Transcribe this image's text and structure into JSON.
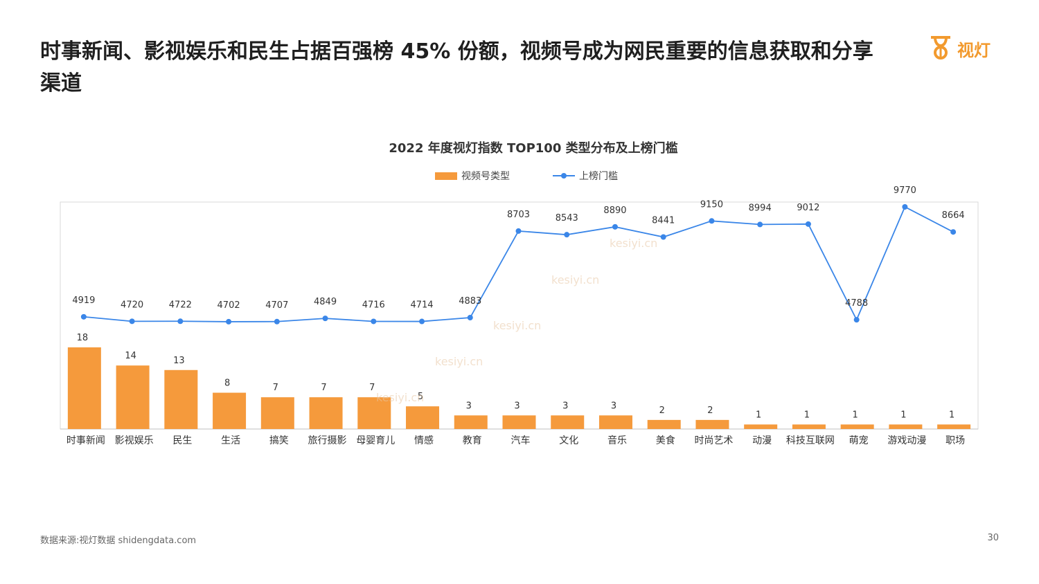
{
  "headline": "时事新闻、影视娱乐和民生占据百强榜 45% 份额，视频号成为网民重要的信息获取和分享渠道",
  "logo": {
    "name": "视灯",
    "icon": "lamp-logo-icon"
  },
  "source": "数据来源:视灯数据 shidengdata.com",
  "page_number": "30",
  "watermark": "kesiyi.cn",
  "colors": {
    "bar": "#f59a3c",
    "line": "#3a86e8",
    "accent": "#f29a2e"
  },
  "chart_data": {
    "type": "bar+line",
    "title": "2022 年度视灯指数 TOP100 类型分布及上榜门槛",
    "legend": [
      "视频号类型",
      "上榜门槛"
    ],
    "legend_position": "top-center",
    "categories": [
      "时事新闻",
      "影视娱乐",
      "民生",
      "生活",
      "搞笑",
      "旅行摄影",
      "母婴育儿",
      "情感",
      "教育",
      "汽车",
      "文化",
      "音乐",
      "美食",
      "时尚艺术",
      "动漫",
      "科技互联网",
      "萌宠",
      "游戏动漫",
      "职场"
    ],
    "series": [
      {
        "name": "视频号类型",
        "type": "bar",
        "values": [
          18,
          14,
          13,
          8,
          7,
          7,
          7,
          5,
          3,
          3,
          3,
          3,
          2,
          2,
          1,
          1,
          1,
          1,
          1
        ]
      },
      {
        "name": "上榜门槛",
        "type": "line",
        "values": [
          4919,
          4720,
          4722,
          4702,
          4707,
          4849,
          4716,
          4714,
          4883,
          8703,
          8543,
          8890,
          8441,
          9150,
          8994,
          9012,
          4788,
          9770,
          8664
        ]
      }
    ],
    "bar_ylim": [
      0,
      20
    ],
    "line_ylim": [
      0,
      11000
    ],
    "grid": false
  }
}
